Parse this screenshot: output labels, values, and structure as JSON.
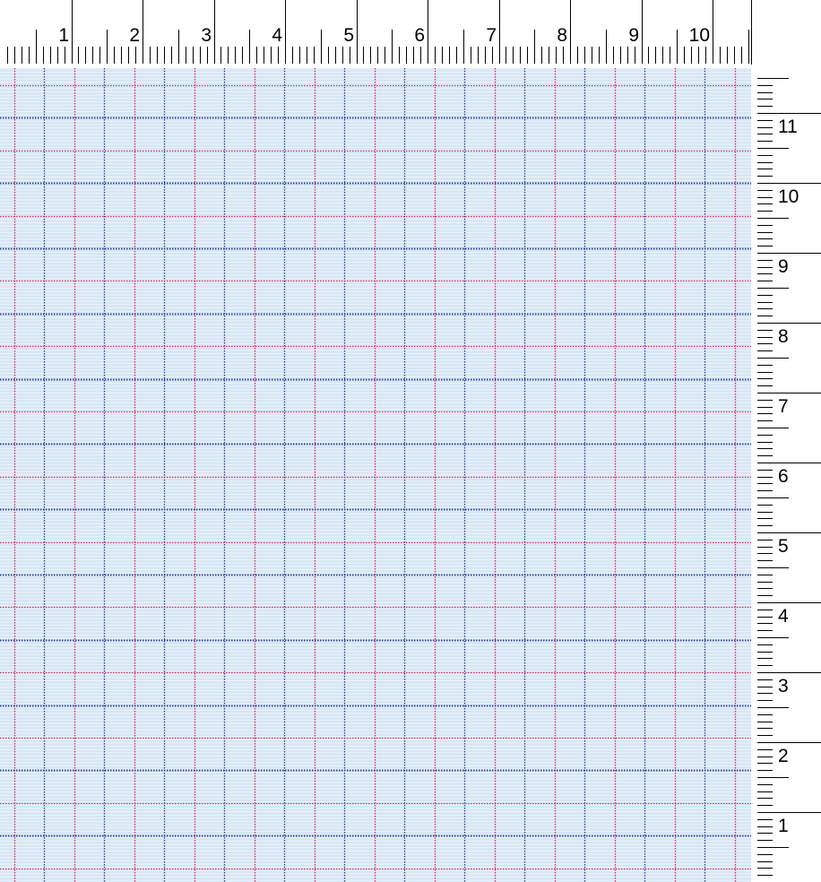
{
  "rulers": {
    "top": {
      "unit": "inch",
      "labels": [
        "1",
        "2",
        "3",
        "4",
        "5",
        "6",
        "7",
        "8",
        "9",
        "10"
      ],
      "subdivisions": 10
    },
    "right": {
      "unit": "inch",
      "labels": [
        "1",
        "2",
        "3",
        "4",
        "5",
        "6",
        "7",
        "8",
        "9",
        "10",
        "11"
      ],
      "subdivisions": 10
    }
  },
  "grid": {
    "background_color": "#d6e6f4",
    "stripe_color": "#eef5fb",
    "major_line_color": "#2e3f8f",
    "minor_line_color": "#d8285a",
    "line_style": "dotted"
  }
}
